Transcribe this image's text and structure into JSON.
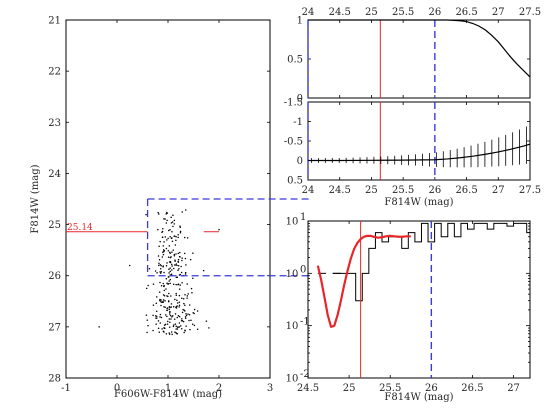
{
  "chart_data": [
    {
      "id": "cmd",
      "type": "scatter",
      "xlabel": "F606W-F814W (mag)",
      "ylabel": "F814W (mag)",
      "xlim": [
        -1,
        3
      ],
      "ylim": [
        28,
        21
      ],
      "y_inverted": true,
      "xticks": [
        "-1",
        "0",
        "1",
        "2",
        "3"
      ],
      "yticks": [
        "21",
        "22",
        "23",
        "24",
        "25",
        "26",
        "27",
        "28"
      ],
      "annotation": {
        "label": "25.14",
        "value": 25.14,
        "color": "#e8262a"
      },
      "trgb_line": {
        "y": 25.14,
        "x_segments": [
          [
            -1,
            0.6
          ],
          [
            1.7,
            2.0
          ]
        ],
        "color": "#e8262a"
      },
      "selection_box": {
        "x": [
          0.6,
          3
        ],
        "y": [
          24.5,
          26.0
        ],
        "color": "#3a3ae0",
        "style": "dashed"
      },
      "stars_region": {
        "x_center": 1.05,
        "x_spread": 0.25,
        "y_range": [
          24.7,
          27.15
        ]
      },
      "point_count": 320
    },
    {
      "id": "completeness",
      "type": "line",
      "xlim": [
        24,
        27.5
      ],
      "ylim": [
        0,
        1
      ],
      "xticks": [
        "24",
        "24.5",
        "25",
        "25.5",
        "26",
        "26.5",
        "27",
        "27.5"
      ],
      "yticks": [
        "0",
        "0.5",
        "1"
      ],
      "x": [
        24.0,
        26.0,
        26.2,
        26.4,
        26.5,
        26.6,
        26.7,
        26.8,
        26.9,
        27.0,
        27.1,
        27.2,
        27.3,
        27.4,
        27.5
      ],
      "y": [
        1.0,
        1.0,
        1.0,
        0.99,
        0.98,
        0.955,
        0.92,
        0.87,
        0.8,
        0.72,
        0.62,
        0.52,
        0.43,
        0.35,
        0.27
      ],
      "vlines": [
        {
          "x": 24.0,
          "color": "#3a3ae0",
          "style": "dashed"
        },
        {
          "x": 25.14,
          "color": "#e8262a",
          "style": "solid"
        },
        {
          "x": 26.0,
          "color": "#3a3ae0",
          "style": "dashed"
        }
      ]
    },
    {
      "id": "bias",
      "type": "line",
      "xlabel": "F814W (mag)",
      "xlim": [
        24,
        27.5
      ],
      "ylim": [
        0.5,
        -1.5
      ],
      "y_inverted": true,
      "xticks": [
        "24",
        "24.5",
        "25",
        "25.5",
        "26",
        "26.5",
        "27",
        "27.5"
      ],
      "yticks": [
        "-1.5",
        "-1",
        "-0.5",
        "0",
        "0.5"
      ],
      "x": [
        24.0,
        24.5,
        25.0,
        25.5,
        26.0,
        26.2,
        26.4,
        26.6,
        26.8,
        27.0,
        27.2,
        27.4,
        27.5
      ],
      "y": [
        0.0,
        0.0,
        -0.005,
        -0.01,
        -0.02,
        -0.04,
        -0.07,
        -0.11,
        -0.16,
        -0.22,
        -0.29,
        -0.37,
        -0.42
      ],
      "errorbars": {
        "x_start": 24.0,
        "x_end": 27.5,
        "count": 32,
        "err_min": 0.06,
        "err_max": 0.48
      },
      "vlines": [
        {
          "x": 24.0,
          "color": "#3a3ae0",
          "style": "dashed"
        },
        {
          "x": 25.14,
          "color": "#e8262a",
          "style": "solid"
        },
        {
          "x": 26.0,
          "color": "#3a3ae0",
          "style": "dashed"
        }
      ]
    },
    {
      "id": "luminosity-function",
      "type": "line",
      "xlabel": "F814W (mag)",
      "xlim": [
        24.5,
        27.2
      ],
      "ylim": [
        0.01,
        10
      ],
      "y_scale": "log",
      "xticks": [
        "24.5",
        "25",
        "25.5",
        "26",
        "26.5",
        "27"
      ],
      "xtick_values": [
        24.5,
        25,
        25.5,
        26,
        26.5,
        27
      ],
      "yticks": [
        "10",
        "0",
        "-1",
        "-2"
      ],
      "yticks_values": [
        10,
        1,
        0.1,
        0.01
      ],
      "histogram": {
        "bin_edges": [
          24.8,
          24.9,
          25.0,
          25.08,
          25.16,
          25.24,
          25.32,
          25.4,
          25.48,
          25.56,
          25.64,
          25.72,
          25.8,
          25.88,
          25.96,
          26.04,
          26.12,
          26.2,
          26.28,
          26.36,
          26.44,
          26.52,
          26.6,
          26.68,
          26.76,
          26.84,
          26.92,
          27.0,
          27.08,
          27.16,
          27.2
        ],
        "counts": [
          1,
          1,
          1,
          0.3,
          1,
          3,
          6,
          4,
          5,
          5,
          3,
          6,
          4,
          9,
          4,
          9,
          5,
          9,
          5,
          9,
          7,
          9,
          9,
          7,
          9,
          9,
          8,
          9,
          9,
          6
        ],
        "color": "#000000"
      },
      "dash_segments": [
        [
          24.62,
          24.72
        ],
        [
          24.8,
          24.9
        ]
      ],
      "fit_curve": {
        "x": [
          24.62,
          24.66,
          24.7,
          24.74,
          24.78,
          24.82,
          24.86,
          24.9,
          24.94,
          24.98,
          25.02,
          25.06,
          25.1,
          25.14,
          25.18,
          25.22,
          25.26,
          25.3,
          25.35,
          25.4,
          25.45,
          25.5,
          25.55,
          25.6,
          25.65,
          25.7,
          25.75
        ],
        "y": [
          1.4,
          0.75,
          0.35,
          0.16,
          0.095,
          0.1,
          0.16,
          0.3,
          0.6,
          1.1,
          1.9,
          2.9,
          3.8,
          4.5,
          5.0,
          5.2,
          5.2,
          5.0,
          4.8,
          4.9,
          5.1,
          5.2,
          5.1,
          5.0,
          5.0,
          5.1,
          5.1
        ],
        "color": "#e8262a"
      },
      "vlines": [
        {
          "x": 25.14,
          "color": "#e8262a",
          "style": "solid"
        },
        {
          "x": 26.0,
          "color": "#3a3ae0",
          "style": "dashed"
        }
      ]
    }
  ]
}
